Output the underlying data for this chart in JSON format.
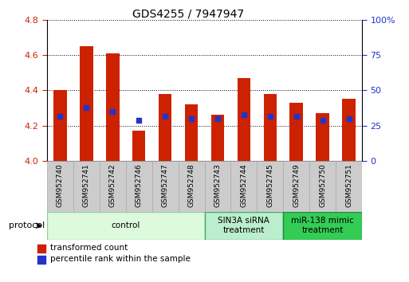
{
  "title": "GDS4255 / 7947947",
  "samples": [
    "GSM952740",
    "GSM952741",
    "GSM952742",
    "GSM952746",
    "GSM952747",
    "GSM952748",
    "GSM952743",
    "GSM952744",
    "GSM952745",
    "GSM952749",
    "GSM952750",
    "GSM952751"
  ],
  "transformed_count": [
    4.4,
    4.65,
    4.61,
    4.17,
    4.38,
    4.32,
    4.26,
    4.47,
    4.38,
    4.33,
    4.27,
    4.35
  ],
  "percentile_rank_left": [
    4.25,
    4.3,
    4.28,
    4.23,
    4.25,
    4.24,
    4.24,
    4.26,
    4.25,
    4.25,
    4.23,
    4.24
  ],
  "ylim_left": [
    4.0,
    4.8
  ],
  "ylim_right": [
    0,
    100
  ],
  "yticks_left": [
    4.0,
    4.2,
    4.4,
    4.6,
    4.8
  ],
  "yticks_right": [
    0,
    25,
    50,
    75,
    100
  ],
  "bar_color": "#cc2200",
  "dot_color": "#2233cc",
  "bar_width": 0.5,
  "dot_size": 22,
  "groups": [
    {
      "label": "control",
      "start": 0,
      "end": 6,
      "color": "#ddfadd",
      "edge_color": "#99cc99"
    },
    {
      "label": "SIN3A siRNA\ntreatment",
      "start": 6,
      "end": 9,
      "color": "#bbeecc",
      "edge_color": "#44aa66"
    },
    {
      "label": "miR-138 mimic\ntreatment",
      "start": 9,
      "end": 12,
      "color": "#33cc55",
      "edge_color": "#228844"
    }
  ],
  "legend_labels": [
    "transformed count",
    "percentile rank within the sample"
  ],
  "legend_colors": [
    "#cc2200",
    "#2233cc"
  ],
  "grid_color": "#000000",
  "tick_color_left": "#cc2200",
  "tick_color_right": "#2233cc",
  "background_color": "#ffffff",
  "plot_bg_color": "#ffffff",
  "tick_label_area_color": "#cccccc",
  "right_axis_label": "100%"
}
